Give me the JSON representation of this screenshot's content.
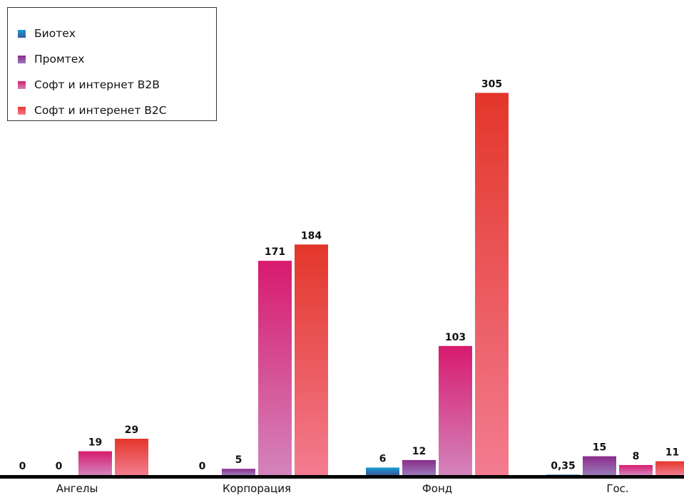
{
  "colors": {
    "biotech": [
      "#1a9ad6",
      "#3a5a9c"
    ],
    "promtech": [
      "#8a2c8a",
      "#9a7ab8"
    ],
    "soft_b2b": [
      "#d81a6e",
      "#d384bc"
    ],
    "soft_b2c": [
      "#e3362a",
      "#f37c90"
    ],
    "baseline": "#000000"
  },
  "chart_data": {
    "type": "bar",
    "categories": [
      "Ангелы",
      "Корпорация",
      "Фонд",
      "Гос."
    ],
    "series": [
      {
        "name": "Биотех",
        "values": [
          0,
          0,
          6,
          0.35
        ],
        "labels": [
          "0",
          "0",
          "6",
          "0,35"
        ]
      },
      {
        "name": "Промтех",
        "values": [
          0,
          5,
          12,
          15
        ],
        "labels": [
          "0",
          "5",
          "12",
          "15"
        ]
      },
      {
        "name": "Софт и интернет В2В",
        "values": [
          19,
          171,
          103,
          8
        ],
        "labels": [
          "19",
          "171",
          "103",
          "8"
        ]
      },
      {
        "name": "Софт и интеренет В2С",
        "values": [
          29,
          184,
          305,
          11
        ],
        "labels": [
          "29",
          "184",
          "305",
          "11"
        ]
      }
    ],
    "ylim": [
      0,
      320
    ],
    "grid": false,
    "legend": "top-left"
  }
}
